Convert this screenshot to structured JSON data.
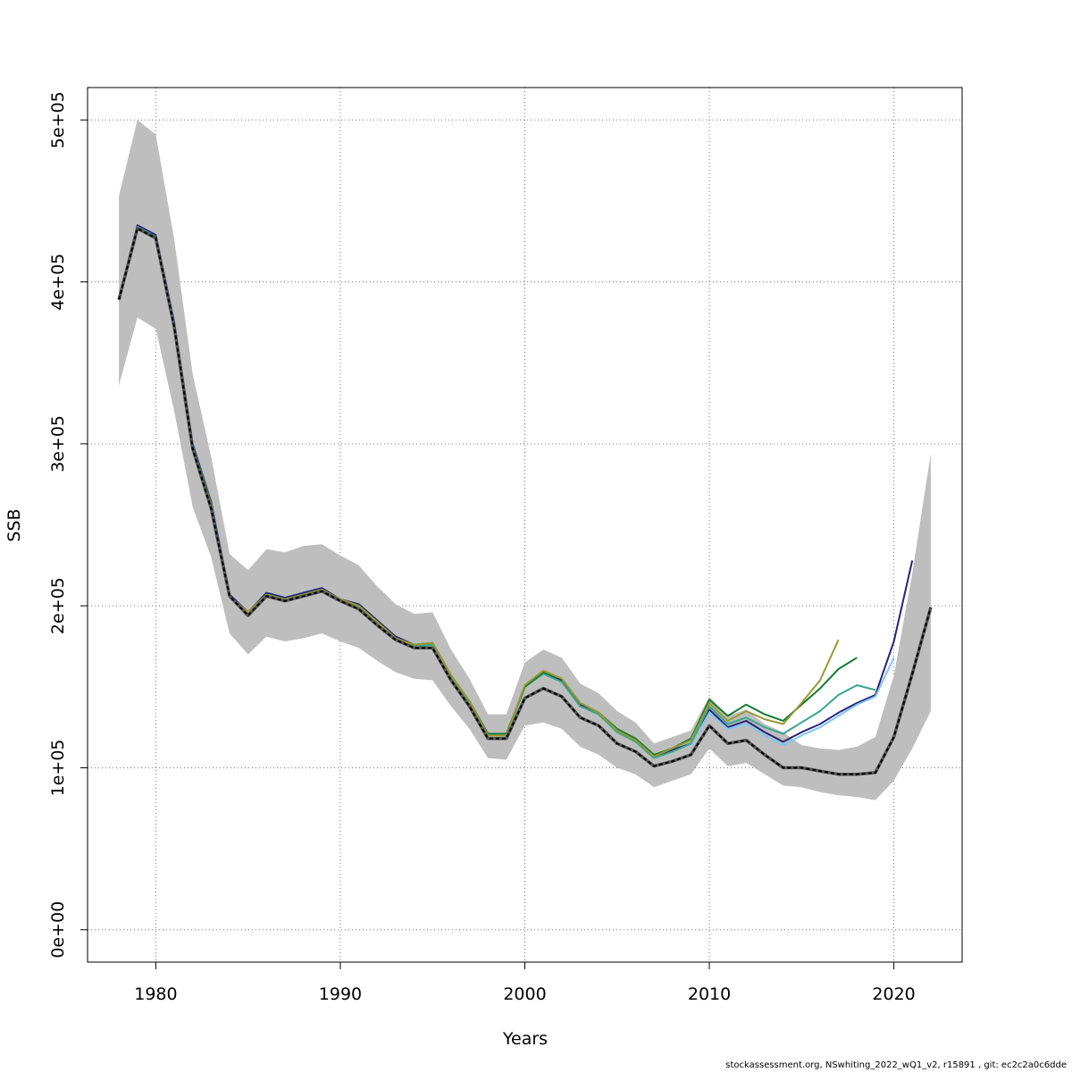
{
  "chart_data": {
    "type": "line",
    "title": "",
    "xlabel": "Years",
    "ylabel": "SSB",
    "xlim": [
      1976.3,
      2023.7
    ],
    "ylim": [
      -20000,
      520000
    ],
    "x_ticks": [
      1980,
      1990,
      2000,
      2010,
      2020
    ],
    "x_tick_labels": [
      "1980",
      "1990",
      "2000",
      "2010",
      "2020"
    ],
    "y_ticks": [
      0,
      100000,
      200000,
      300000,
      400000,
      500000
    ],
    "y_tick_labels": [
      "0e+00",
      "1e+05",
      "2e+05",
      "3e+05",
      "4e+05",
      "5e+05"
    ],
    "grid": true,
    "band": {
      "x": [
        1978,
        1979,
        1980,
        1981,
        1982,
        1983,
        1984,
        1985,
        1986,
        1987,
        1988,
        1989,
        1990,
        1991,
        1992,
        1993,
        1994,
        1995,
        1996,
        1997,
        1998,
        1999,
        2000,
        2001,
        2002,
        2003,
        2004,
        2005,
        2006,
        2007,
        2008,
        2009,
        2010,
        2011,
        2012,
        2013,
        2014,
        2015,
        2016,
        2017,
        2018,
        2019,
        2020,
        2021,
        2022
      ],
      "lower": [
        336000,
        378000,
        371000,
        320000,
        261000,
        230000,
        183000,
        170000,
        181000,
        178000,
        180000,
        183000,
        178000,
        174000,
        166000,
        159000,
        155000,
        154000,
        138000,
        124000,
        106000,
        105000,
        126000,
        128000,
        124000,
        113000,
        108000,
        100000,
        96000,
        88000,
        92000,
        96000,
        112000,
        101000,
        103000,
        96000,
        89000,
        88000,
        85000,
        83000,
        82000,
        80000,
        92000,
        112000,
        135000
      ],
      "upper": [
        453000,
        500000,
        491000,
        426000,
        343000,
        292000,
        232000,
        222000,
        235000,
        233000,
        237000,
        238000,
        231000,
        225000,
        212000,
        201000,
        195000,
        196000,
        173000,
        155000,
        133000,
        133000,
        165000,
        173000,
        168000,
        152000,
        146000,
        135000,
        128000,
        115000,
        119000,
        123000,
        144000,
        132000,
        136000,
        127000,
        122000,
        114000,
        112000,
        111000,
        113000,
        119000,
        157000,
        220000,
        294000
      ]
    },
    "series": [
      {
        "color": "#000000",
        "dashed": true,
        "x": [
          1978,
          1979,
          1980,
          1981,
          1982,
          1983,
          1984,
          1985,
          1986,
          1987,
          1988,
          1989,
          1990,
          1991,
          1992,
          1993,
          1994,
          1995,
          1996,
          1997,
          1998,
          1999,
          2000,
          2001,
          2002,
          2003,
          2004,
          2005,
          2006,
          2007,
          2008,
          2009,
          2010,
          2011,
          2012,
          2013,
          2014,
          2015,
          2016,
          2017,
          2018,
          2019,
          2020,
          2021,
          2022
        ],
        "values": [
          389000,
          433000,
          427000,
          372000,
          297000,
          260000,
          206000,
          194000,
          206000,
          203000,
          206000,
          209000,
          203000,
          198000,
          188000,
          179000,
          174000,
          174000,
          154000,
          138000,
          118000,
          118000,
          143000,
          149000,
          144000,
          131000,
          126000,
          115000,
          110000,
          101000,
          104000,
          108000,
          126000,
          115000,
          117000,
          108000,
          100000,
          100000,
          98000,
          96000,
          96000,
          97000,
          119000,
          158000,
          199000
        ]
      },
      {
        "color": "#28237a",
        "x": [
          1978,
          1979,
          1980,
          1981,
          1982,
          1983,
          1984,
          1985,
          1986,
          1987,
          1988,
          1989,
          1990,
          1991,
          1992,
          1993,
          1994,
          1995,
          1996,
          1997,
          1998,
          1999,
          2000,
          2001,
          2002,
          2003,
          2004,
          2005,
          2006,
          2007,
          2008,
          2009,
          2010,
          2011,
          2012,
          2013,
          2014,
          2015,
          2016,
          2017,
          2018,
          2019,
          2020,
          2021
        ],
        "values": [
          390000,
          435000,
          429000,
          375000,
          300000,
          264000,
          207000,
          196000,
          208000,
          205000,
          208000,
          211000,
          204000,
          201000,
          191000,
          181000,
          176000,
          177000,
          157000,
          141000,
          120000,
          120000,
          150000,
          159000,
          154000,
          139000,
          134000,
          123000,
          117000,
          107000,
          111000,
          115000,
          136000,
          125000,
          129000,
          122000,
          116000,
          122000,
          127000,
          134000,
          140000,
          145000,
          178000,
          228000
        ]
      },
      {
        "color": "#7ec8f0",
        "x": [
          2009,
          2010,
          2011,
          2012,
          2013,
          2014,
          2015,
          2016,
          2017,
          2018,
          2019,
          2020
        ],
        "values": [
          114000,
          134000,
          124000,
          127000,
          120000,
          114000,
          120000,
          125000,
          132000,
          139000,
          144000,
          168000
        ]
      },
      {
        "color": "#3aa58e",
        "x": [
          1978,
          1979,
          1980,
          1981,
          1982,
          1983,
          1984,
          1985,
          1986,
          1987,
          1988,
          1989,
          1990,
          1991,
          1992,
          1993,
          1994,
          1995,
          1996,
          1997,
          1998,
          1999,
          2000,
          2001,
          2002,
          2003,
          2004,
          2005,
          2006,
          2007,
          2008,
          2009,
          2010,
          2011,
          2012,
          2013,
          2014,
          2015,
          2016,
          2017,
          2018,
          2019
        ],
        "values": [
          389000,
          434000,
          428000,
          374000,
          299000,
          263000,
          206000,
          195000,
          207000,
          204000,
          207000,
          210000,
          203000,
          200000,
          190000,
          180000,
          175000,
          176000,
          156000,
          140000,
          120000,
          120000,
          150000,
          158000,
          153000,
          138000,
          133000,
          122000,
          116000,
          106000,
          110000,
          115000,
          138000,
          127000,
          131000,
          125000,
          121000,
          128000,
          135000,
          145000,
          151000,
          148000
        ]
      },
      {
        "color": "#137a2f",
        "x": [
          1978,
          1979,
          1980,
          1981,
          1982,
          1983,
          1984,
          1985,
          1986,
          1987,
          1988,
          1989,
          1990,
          1991,
          1992,
          1993,
          1994,
          1995,
          1996,
          1997,
          1998,
          1999,
          2000,
          2001,
          2002,
          2003,
          2004,
          2005,
          2006,
          2007,
          2008,
          2009,
          2010,
          2011,
          2012,
          2013,
          2014,
          2015,
          2016,
          2017,
          2018
        ],
        "values": [
          389000,
          433000,
          428000,
          374000,
          299000,
          263000,
          206000,
          196000,
          207000,
          204000,
          207000,
          210000,
          204000,
          200000,
          190000,
          180000,
          176000,
          177000,
          157000,
          141000,
          121000,
          121000,
          150000,
          159000,
          155000,
          140000,
          134000,
          124000,
          118000,
          108000,
          112000,
          118000,
          142000,
          132000,
          139000,
          133000,
          129000,
          139000,
          149000,
          161000,
          168000
        ]
      },
      {
        "color": "#999933",
        "x": [
          1978,
          1979,
          1980,
          1981,
          1982,
          1983,
          1984,
          1985,
          1986,
          1987,
          1988,
          1989,
          1990,
          1991,
          1992,
          1993,
          1994,
          1995,
          1996,
          1997,
          1998,
          1999,
          2000,
          2001,
          2002,
          2003,
          2004,
          2005,
          2006,
          2007,
          2008,
          2009,
          2010,
          2011,
          2012,
          2013,
          2014,
          2015,
          2016,
          2017
        ],
        "values": [
          389000,
          433000,
          427000,
          373000,
          298000,
          262000,
          206000,
          196000,
          207000,
          204000,
          207000,
          210000,
          204000,
          200000,
          190000,
          180000,
          176000,
          177000,
          157000,
          141000,
          120000,
          120000,
          151000,
          160000,
          155000,
          140000,
          134000,
          123000,
          117000,
          107000,
          112000,
          117000,
          140000,
          129000,
          135000,
          130000,
          127000,
          140000,
          154000,
          179000
        ]
      }
    ]
  },
  "footer": "stockassessment.org, NSwhiting_2022_wQ1_v2, r15891 , git: ec2c2a0c6dde"
}
